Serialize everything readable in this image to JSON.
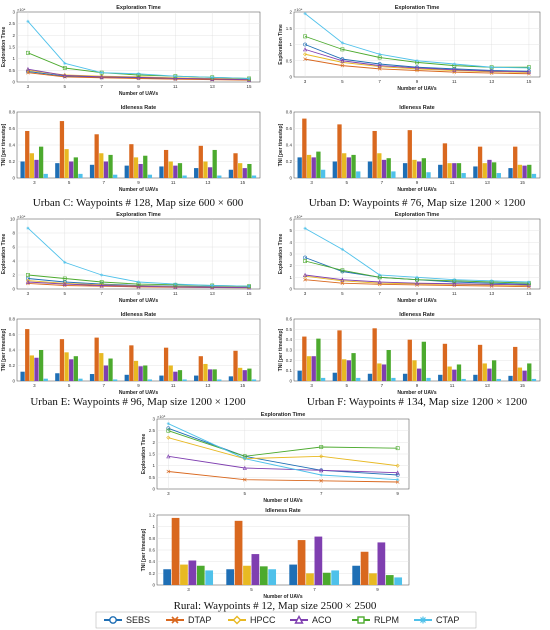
{
  "colors": {
    "SEBS": "#1f6fb5",
    "DTAP": "#d9681f",
    "HPCC": "#e8b923",
    "ACO": "#7f3fb0",
    "RLPM": "#4caa2e",
    "CTAP": "#4fc1ea"
  },
  "legend": {
    "items": [
      {
        "name": "SEBS",
        "marker": "circle"
      },
      {
        "name": "DTAP",
        "marker": "x"
      },
      {
        "name": "HPCC",
        "marker": "diamond"
      },
      {
        "name": "ACO",
        "marker": "triangle"
      },
      {
        "name": "RLPM",
        "marker": "square"
      },
      {
        "name": "CTAP",
        "marker": "asterisk"
      }
    ]
  },
  "chart_data": [
    {
      "type": "line",
      "title": "Exploration Time",
      "xlabel": "Number of UAVs",
      "ylabel": "Exploration Time",
      "exponent": "×10⁴",
      "x": [
        3,
        5,
        7,
        9,
        11,
        13,
        15
      ],
      "ylim": [
        0,
        3
      ],
      "yticks": [
        0,
        0.5,
        1,
        1.5,
        2,
        2.5,
        3
      ],
      "grid": true,
      "caption": "Urban C: Waypoints # 128, Map size 600 × 600",
      "series": [
        {
          "name": "SEBS",
          "values": [
            0.45,
            0.25,
            0.2,
            0.18,
            0.15,
            0.12,
            0.1
          ]
        },
        {
          "name": "DTAP",
          "values": [
            0.4,
            0.22,
            0.18,
            0.15,
            0.12,
            0.1,
            0.08
          ]
        },
        {
          "name": "HPCC",
          "values": [
            0.5,
            0.3,
            0.25,
            0.22,
            0.18,
            0.15,
            0.12
          ]
        },
        {
          "name": "ACO",
          "values": [
            0.55,
            0.28,
            0.22,
            0.2,
            0.16,
            0.13,
            0.1
          ]
        },
        {
          "name": "RLPM",
          "values": [
            1.25,
            0.6,
            0.4,
            0.3,
            0.25,
            0.2,
            0.15
          ]
        },
        {
          "name": "CTAP",
          "values": [
            2.6,
            0.8,
            0.4,
            0.35,
            0.25,
            0.2,
            0.15
          ]
        }
      ]
    },
    {
      "type": "line",
      "title": "Exploration Time",
      "xlabel": "Number of UAVs",
      "ylabel": "Exploration Time",
      "exponent": "×10⁴",
      "x": [
        3,
        5,
        7,
        9,
        11,
        13,
        15
      ],
      "ylim": [
        0,
        2
      ],
      "yticks": [
        0,
        0.5,
        1,
        1.5,
        2
      ],
      "grid": true,
      "caption": "Urban D: Waypoints # 76, Map size 1200 × 1200",
      "series": [
        {
          "name": "SEBS",
          "values": [
            1.0,
            0.55,
            0.4,
            0.3,
            0.25,
            0.2,
            0.18
          ]
        },
        {
          "name": "DTAP",
          "values": [
            0.55,
            0.35,
            0.25,
            0.2,
            0.15,
            0.12,
            0.1
          ]
        },
        {
          "name": "HPCC",
          "values": [
            0.7,
            0.45,
            0.32,
            0.25,
            0.2,
            0.16,
            0.14
          ]
        },
        {
          "name": "ACO",
          "values": [
            0.85,
            0.5,
            0.35,
            0.28,
            0.22,
            0.18,
            0.16
          ]
        },
        {
          "name": "RLPM",
          "values": [
            1.25,
            0.85,
            0.6,
            0.45,
            0.35,
            0.3,
            0.3
          ]
        },
        {
          "name": "CTAP",
          "values": [
            1.95,
            1.05,
            0.7,
            0.5,
            0.4,
            0.3,
            0.28
          ]
        }
      ]
    },
    {
      "type": "bar",
      "title": "Idleness Rate",
      "xlabel": "Number of UAVs",
      "ylabel": "TNI [per timestep]",
      "categories": [
        "3",
        "5",
        "7",
        "9",
        "11",
        "13",
        "15"
      ],
      "ylim": [
        0,
        0.8
      ],
      "yticks": [
        0,
        0.2,
        0.4,
        0.6,
        0.8
      ],
      "grid": true,
      "series": [
        {
          "name": "SEBS",
          "values": [
            0.2,
            0.18,
            0.16,
            0.15,
            0.14,
            0.12,
            0.1
          ]
        },
        {
          "name": "DTAP",
          "values": [
            0.57,
            0.69,
            0.53,
            0.41,
            0.34,
            0.39,
            0.3
          ]
        },
        {
          "name": "HPCC",
          "values": [
            0.3,
            0.35,
            0.3,
            0.25,
            0.2,
            0.2,
            0.18
          ]
        },
        {
          "name": "ACO",
          "values": [
            0.22,
            0.2,
            0.2,
            0.17,
            0.15,
            0.13,
            0.12
          ]
        },
        {
          "name": "RLPM",
          "values": [
            0.38,
            0.25,
            0.28,
            0.27,
            0.18,
            0.34,
            0.17
          ]
        },
        {
          "name": "CTAP",
          "values": [
            0.05,
            0.05,
            0.04,
            0.04,
            0.03,
            0.03,
            0.03
          ]
        }
      ]
    },
    {
      "type": "bar",
      "title": "Idleness Rate",
      "xlabel": "Number of UAVs",
      "ylabel": "TNI [per timestep]",
      "categories": [
        "3",
        "5",
        "7",
        "9",
        "11",
        "13",
        "15"
      ],
      "ylim": [
        0,
        0.8
      ],
      "yticks": [
        0,
        0.2,
        0.4,
        0.6,
        0.8
      ],
      "grid": true,
      "series": [
        {
          "name": "SEBS",
          "values": [
            0.25,
            0.2,
            0.2,
            0.18,
            0.16,
            0.14,
            0.12
          ]
        },
        {
          "name": "DTAP",
          "values": [
            0.72,
            0.65,
            0.57,
            0.58,
            0.42,
            0.38,
            0.38
          ]
        },
        {
          "name": "HPCC",
          "values": [
            0.28,
            0.3,
            0.3,
            0.22,
            0.18,
            0.18,
            0.16
          ]
        },
        {
          "name": "ACO",
          "values": [
            0.25,
            0.25,
            0.22,
            0.2,
            0.18,
            0.22,
            0.15
          ]
        },
        {
          "name": "RLPM",
          "values": [
            0.32,
            0.28,
            0.24,
            0.24,
            0.18,
            0.19,
            0.16
          ]
        },
        {
          "name": "CTAP",
          "values": [
            0.1,
            0.08,
            0.08,
            0.07,
            0.06,
            0.06,
            0.05
          ]
        }
      ]
    },
    {
      "type": "line",
      "title": "Exploration Time",
      "xlabel": "Number of UAVs",
      "ylabel": "Exploration Time",
      "exponent": "×10⁴",
      "x": [
        3,
        5,
        7,
        9,
        11,
        13,
        15
      ],
      "ylim": [
        0,
        10
      ],
      "yticks": [
        0,
        2,
        4,
        6,
        8,
        10
      ],
      "grid": true,
      "caption": "Urban E: Waypoints # 96, Map size 1200 × 1200",
      "series": [
        {
          "name": "SEBS",
          "values": [
            1.5,
            1.0,
            0.7,
            0.5,
            0.4,
            0.35,
            0.3
          ]
        },
        {
          "name": "DTAP",
          "values": [
            0.8,
            0.5,
            0.4,
            0.3,
            0.25,
            0.2,
            0.18
          ]
        },
        {
          "name": "HPCC",
          "values": [
            1.2,
            0.8,
            0.6,
            0.45,
            0.35,
            0.3,
            0.25
          ]
        },
        {
          "name": "ACO",
          "values": [
            1.0,
            0.7,
            0.5,
            0.4,
            0.3,
            0.25,
            0.2
          ]
        },
        {
          "name": "RLPM",
          "values": [
            2.0,
            1.5,
            1.0,
            0.7,
            0.6,
            0.5,
            0.4
          ]
        },
        {
          "name": "CTAP",
          "values": [
            8.7,
            3.8,
            2.0,
            1.0,
            0.7,
            0.5,
            0.4
          ]
        }
      ]
    },
    {
      "type": "line",
      "title": "Exploration Time",
      "xlabel": "Number of UAVs",
      "ylabel": "Exploration Time",
      "exponent": "×10⁴",
      "x": [
        3,
        5,
        7,
        9,
        11,
        13,
        15
      ],
      "ylim": [
        0,
        6
      ],
      "yticks": [
        0,
        1,
        2,
        3,
        4,
        5,
        6
      ],
      "grid": true,
      "caption": "Urban F: Waypoints # 134, Map size 1200 × 1200",
      "series": [
        {
          "name": "SEBS",
          "values": [
            2.7,
            1.5,
            1.0,
            0.8,
            0.6,
            0.5,
            0.4
          ]
        },
        {
          "name": "DTAP",
          "values": [
            0.8,
            0.5,
            0.4,
            0.35,
            0.3,
            0.25,
            0.2
          ]
        },
        {
          "name": "HPCC",
          "values": [
            1.1,
            0.7,
            0.5,
            0.45,
            0.4,
            0.35,
            0.3
          ]
        },
        {
          "name": "ACO",
          "values": [
            1.2,
            0.8,
            0.6,
            0.5,
            0.45,
            0.4,
            0.35
          ]
        },
        {
          "name": "RLPM",
          "values": [
            2.4,
            1.6,
            1.0,
            0.8,
            0.7,
            0.6,
            0.5
          ]
        },
        {
          "name": "CTAP",
          "values": [
            5.2,
            3.4,
            1.2,
            1.0,
            0.8,
            0.7,
            0.6
          ]
        }
      ]
    },
    {
      "type": "bar",
      "title": "Idleness Rate",
      "xlabel": "Number of UAVs",
      "ylabel": "TNI [per timestep]",
      "categories": [
        "3",
        "5",
        "7",
        "9",
        "11",
        "13",
        "15"
      ],
      "ylim": [
        0,
        0.8
      ],
      "yticks": [
        0,
        0.2,
        0.4,
        0.6,
        0.8
      ],
      "grid": true,
      "series": [
        {
          "name": "SEBS",
          "values": [
            0.12,
            0.1,
            0.09,
            0.08,
            0.07,
            0.07,
            0.06
          ]
        },
        {
          "name": "DTAP",
          "values": [
            0.67,
            0.54,
            0.56,
            0.46,
            0.43,
            0.32,
            0.39
          ]
        },
        {
          "name": "HPCC",
          "values": [
            0.33,
            0.37,
            0.36,
            0.26,
            0.2,
            0.22,
            0.17
          ]
        },
        {
          "name": "ACO",
          "values": [
            0.3,
            0.28,
            0.2,
            0.19,
            0.12,
            0.15,
            0.14
          ]
        },
        {
          "name": "RLPM",
          "values": [
            0.4,
            0.32,
            0.29,
            0.2,
            0.14,
            0.15,
            0.16
          ]
        },
        {
          "name": "CTAP",
          "values": [
            0.03,
            0.03,
            0.02,
            0.02,
            0.02,
            0.02,
            0.02
          ]
        }
      ]
    },
    {
      "type": "bar",
      "title": "Idleness Rate",
      "xlabel": "Number of UAVs",
      "ylabel": "TNI [per timestep]",
      "categories": [
        "3",
        "5",
        "7",
        "9",
        "11",
        "13",
        "15"
      ],
      "ylim": [
        0,
        0.6
      ],
      "yticks": [
        0,
        0.1,
        0.2,
        0.3,
        0.4,
        0.5,
        0.6
      ],
      "grid": true,
      "series": [
        {
          "name": "SEBS",
          "values": [
            0.1,
            0.08,
            0.07,
            0.07,
            0.06,
            0.06,
            0.05
          ]
        },
        {
          "name": "DTAP",
          "values": [
            0.43,
            0.49,
            0.51,
            0.4,
            0.36,
            0.35,
            0.33
          ]
        },
        {
          "name": "HPCC",
          "values": [
            0.24,
            0.21,
            0.17,
            0.2,
            0.14,
            0.17,
            0.13
          ]
        },
        {
          "name": "ACO",
          "values": [
            0.24,
            0.2,
            0.16,
            0.12,
            0.11,
            0.12,
            0.1
          ]
        },
        {
          "name": "RLPM",
          "values": [
            0.41,
            0.27,
            0.3,
            0.38,
            0.16,
            0.2,
            0.17
          ]
        },
        {
          "name": "CTAP",
          "values": [
            0.03,
            0.03,
            0.03,
            0.03,
            0.02,
            0.02,
            0.02
          ]
        }
      ]
    },
    {
      "type": "line",
      "title": "Exploration Time",
      "xlabel": "Number of UAVs",
      "ylabel": "Exploration Time",
      "exponent": "×10⁵",
      "x": [
        3,
        5,
        7,
        9
      ],
      "ylim": [
        0,
        3
      ],
      "yticks": [
        0,
        0.5,
        1,
        1.5,
        2,
        2.5,
        3
      ],
      "grid": true,
      "caption": "Rural: Waypoints # 12, Map size 2500 × 2500",
      "series": [
        {
          "name": "SEBS",
          "values": [
            2.6,
            1.4,
            0.8,
            0.6
          ]
        },
        {
          "name": "DTAP",
          "values": [
            0.75,
            0.4,
            0.35,
            0.3
          ]
        },
        {
          "name": "HPCC",
          "values": [
            2.2,
            1.3,
            1.4,
            1.0
          ]
        },
        {
          "name": "ACO",
          "values": [
            1.4,
            0.9,
            0.8,
            0.7
          ]
        },
        {
          "name": "RLPM",
          "values": [
            2.5,
            1.4,
            1.8,
            1.75
          ]
        },
        {
          "name": "CTAP",
          "values": [
            2.8,
            1.3,
            0.6,
            0.4
          ]
        }
      ]
    },
    {
      "type": "bar",
      "title": "Idleness Rate",
      "xlabel": "Number of UAVs",
      "ylabel": "TNI [per timestep]",
      "categories": [
        "3",
        "5",
        "7",
        "9"
      ],
      "ylim": [
        0,
        1.2
      ],
      "yticks": [
        0,
        0.2,
        0.4,
        0.6,
        0.8,
        1,
        1.2
      ],
      "grid": true,
      "series": [
        {
          "name": "SEBS",
          "values": [
            0.27,
            0.27,
            0.35,
            0.33
          ]
        },
        {
          "name": "DTAP",
          "values": [
            1.15,
            1.1,
            0.77,
            0.57
          ]
        },
        {
          "name": "HPCC",
          "values": [
            0.35,
            0.33,
            0.2,
            0.2
          ]
        },
        {
          "name": "ACO",
          "values": [
            0.42,
            0.53,
            0.83,
            0.73
          ]
        },
        {
          "name": "RLPM",
          "values": [
            0.33,
            0.32,
            0.21,
            0.17
          ]
        },
        {
          "name": "CTAP",
          "values": [
            0.25,
            0.27,
            0.25,
            0.13
          ]
        }
      ]
    }
  ]
}
